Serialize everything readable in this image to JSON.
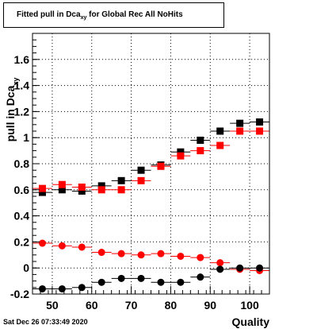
{
  "title": {
    "main": "Fitted pull in Dca",
    "subscript": "xy",
    "rest": " for Global Rec All NoHits"
  },
  "timestamp": "Sat Dec 26 07:33:49 2020",
  "chart_data": {
    "type": "scatter",
    "xlabel": "Quality",
    "ylabel": "pull in Dca",
    "ylabel_subscript": "xy",
    "xlim": [
      45,
      105
    ],
    "ylim": [
      -0.2,
      1.8
    ],
    "xticks": [
      "50",
      "60",
      "70",
      "80",
      "90",
      "100"
    ],
    "yticks": [
      "-0.2",
      "0",
      "0.2",
      "0.4",
      "0.6",
      "0.8",
      "1",
      "1.2",
      "1.4",
      "1.6"
    ],
    "grid": true,
    "bin_width": 5,
    "x": [
      47.5,
      52.5,
      57.5,
      62.5,
      67.5,
      72.5,
      77.5,
      82.5,
      87.5,
      92.5,
      97.5,
      102.5
    ],
    "series": [
      {
        "marker": "square",
        "color": "#000000",
        "values": [
          0.58,
          0.6,
          0.59,
          0.63,
          0.67,
          0.75,
          0.79,
          0.89,
          0.98,
          1.05,
          1.11,
          1.12
        ]
      },
      {
        "marker": "square",
        "color": "#ff0000",
        "values": [
          0.61,
          0.64,
          0.62,
          0.6,
          0.6,
          0.67,
          0.78,
          0.86,
          0.9,
          0.94,
          1.05,
          1.05
        ]
      },
      {
        "marker": "circle",
        "color": "#ff0000",
        "values": [
          0.19,
          0.17,
          0.16,
          0.12,
          0.11,
          0.1,
          0.11,
          0.09,
          0.08,
          0.04,
          -0.01,
          -0.02
        ]
      },
      {
        "marker": "circle",
        "color": "#000000",
        "values": [
          -0.16,
          -0.16,
          -0.15,
          -0.11,
          -0.08,
          -0.08,
          -0.11,
          -0.11,
          -0.07,
          -0.01,
          0.0,
          0.0
        ]
      }
    ]
  }
}
